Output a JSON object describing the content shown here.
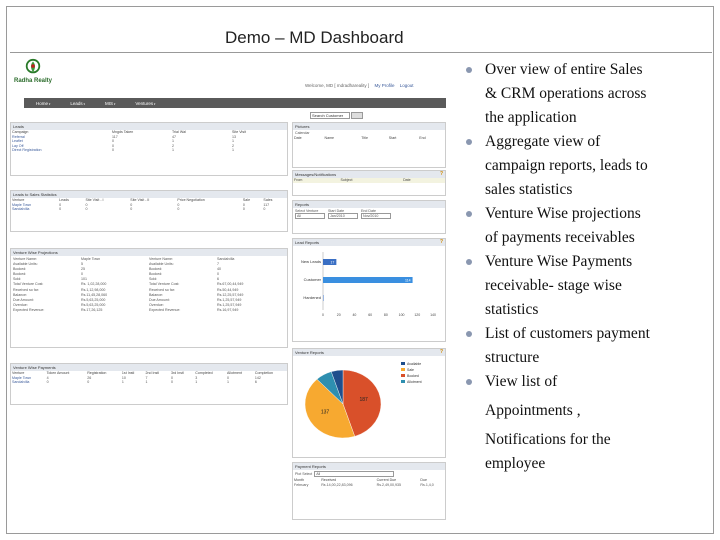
{
  "slide": {
    "title": "Demo – MD Dashboard"
  },
  "bullets": [
    {
      "lines": [
        "Over view of entire Sales",
        "& CRM  operations across",
        "the application"
      ]
    },
    {
      "lines": [
        "Aggregate view of",
        "campaign reports, leads to",
        "sales statistics"
      ]
    },
    {
      "lines": [
        "Venture Wise projections",
        "of payments receivables"
      ]
    },
    {
      "lines": [
        "Venture Wise  Payments",
        "receivable- stage wise",
        "statistics"
      ]
    },
    {
      "lines": [
        "List of customers payment",
        "structure"
      ]
    },
    {
      "lines": [
        "View list of"
      ]
    }
  ],
  "bullet_continuation": {
    "line1": "Appointments ,",
    "line2": "Notifications for the",
    "line3": "employee"
  },
  "app": {
    "logo_name": "Radha Realty",
    "welcome": "Welcome, MD [ mdradhareality ]",
    "my_profile": "My Profile",
    "logout": "Logout",
    "nav": [
      "Home",
      "Leads",
      "MIS",
      "Ventures"
    ],
    "search_label": "Search Customer",
    "leads_panel": {
      "title": "Leads",
      "headers": [
        "Campaign",
        "Mngds Taken",
        "Trial Wal",
        "Site Visit"
      ],
      "rows": [
        [
          "Referral",
          "117",
          "47",
          "13"
        ],
        [
          "Leaflet",
          "0",
          "1",
          "1"
        ],
        [
          "Lay Off",
          "0",
          "2",
          "2"
        ],
        [
          "Direct Registration",
          "0",
          "1",
          "1"
        ]
      ]
    },
    "sales_stats": {
      "title": "Leads to Sales Statistics",
      "headers": [
        "Venture",
        "Leads",
        "Site Visit - I",
        "Site Visit - II",
        "Price Negotiation",
        "Sale",
        "Sales"
      ],
      "rows": [
        [
          "Maple Town",
          "0",
          "0",
          "0",
          "0",
          "0",
          "117"
        ],
        [
          "Sandalvilla",
          "0",
          "0",
          "0",
          "0",
          "0",
          "0"
        ]
      ]
    },
    "projections": {
      "title": "Venture Wise Projections",
      "cells": [
        "Venture Name:",
        "Maple Town",
        "Venture Name:",
        "Sandalvilla",
        "Available Units:",
        "5",
        "Available Units:",
        "7",
        "Booked:",
        "25",
        "Booked:",
        "40",
        "Booked:",
        "0",
        "Booked:",
        "0",
        "Sold:",
        "101",
        "Sold:",
        "6",
        "Total Venture Cost:",
        "Rs. 1,02,28,000",
        "Total Venture Cost:",
        "Rs.67,00,44,949",
        "Received so far:",
        "Rs.1,12,98,000",
        "Received so far:",
        "Rs.50,44,949",
        "Balance:",
        "Rs.11,45,28,060",
        "Balance:",
        "Rs.12,25,57,949",
        "Due Amount:",
        "Rs.5,63,25,000",
        "Due Amount:",
        "Rs.1,25,57,949",
        "Overdue:",
        "Rs.5,63,25,000",
        "Overdue:",
        "Rs.1,25,57,949",
        "Expected Revenue:",
        "Rs.17,26,125",
        "Expected Revenue:",
        "Rs.16,97,949"
      ]
    },
    "payments": {
      "title": "Venture Wise Payments",
      "headers": [
        "Venture",
        "Token Amount",
        "Registration",
        "1st Instl",
        "2nd Instl",
        "3rd Instl",
        "Completed",
        "Allotment",
        "Completion"
      ],
      "rows": [
        [
          "Maple Town",
          "4",
          "26",
          "10",
          "7",
          "0",
          "3",
          "0",
          "142"
        ],
        [
          "Sandalvilla",
          "0",
          "0",
          "1",
          "1",
          "0",
          "1",
          "1",
          "6"
        ]
      ]
    },
    "pictures_panel": {
      "title": "Pictures",
      "headers": [
        "Date",
        "Name",
        "Title",
        "Start",
        "End"
      ]
    },
    "calendar_label": "Calendar",
    "messages": {
      "title": "Messages/Notifications",
      "headers": [
        "From",
        "Subject",
        "Date"
      ]
    },
    "reports": {
      "title": "Reports",
      "labels": [
        "Select Venture",
        "Start Date",
        "End Date"
      ],
      "values": [
        "All",
        "Jan/2010",
        "Nov/2010"
      ]
    },
    "lead_reports": {
      "title": "Lead Reports",
      "bars": [
        {
          "label": "New Leads",
          "value": 17,
          "color": "#3a6fc4"
        },
        {
          "label": "Customer",
          "value": 114,
          "color": "#3a8fe0"
        },
        {
          "label": "Hardened",
          "value": 0,
          "color": "#3a6fc4"
        }
      ],
      "axis_ticks": [
        "0",
        "20",
        "40",
        "60",
        "80",
        "100",
        "120",
        "140"
      ],
      "max": 140
    },
    "venture_reports": {
      "title": "Venture Reports",
      "legend": [
        "Available",
        "Sale",
        "Booked",
        "Allotment"
      ],
      "legend_colors": [
        "#1f4e8c",
        "#f7a930",
        "#d9502a",
        "#2e8fb0"
      ],
      "slices": [
        {
          "label": "187",
          "value": 45,
          "color": "#d9502a"
        },
        {
          "label": "137",
          "value": 43,
          "color": "#f7a930"
        },
        {
          "label": "",
          "value": 7,
          "color": "#2e8fb0"
        },
        {
          "label": "",
          "value": 5,
          "color": "#1f4e8c"
        }
      ],
      "slice_labels": [
        "187",
        "137"
      ]
    },
    "payment_reports": {
      "title": "Payment Reports",
      "select_label": "Plot Select",
      "select_value": "All",
      "headers": [
        "Month",
        "Received",
        "Current Due",
        "Due"
      ],
      "rows": [
        [
          "February",
          "Rs.14,00,22,83,096",
          "Rs.2,49,00,935",
          "Rs.1,4,0"
        ]
      ]
    }
  }
}
